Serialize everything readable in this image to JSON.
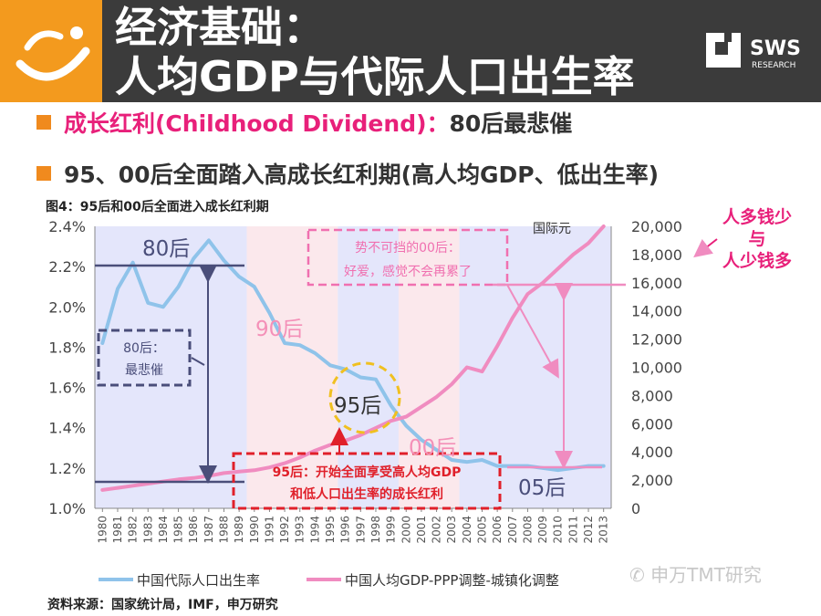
{
  "header": {
    "title_line1": "经济基础：",
    "title_line2": "人均GDP与代际人口出生率",
    "sws_brand": "SWS",
    "sws_sub": "RESEARCH"
  },
  "bullets": {
    "b1_pink": "成长红利(Childhood Dividend)：",
    "b1_rest": "80后最悲催",
    "b2": "95、00后全面踏入高成长红利期(高人均GDP、低出生率)"
  },
  "figure": {
    "title": "图4：95后和00后全面进入成长红利期",
    "right_axis_unit": "国际元",
    "source": "资料来源：国家统计局，IMF，申万研究"
  },
  "annotations": {
    "era_80": "80后",
    "era_90": "90后",
    "era_95": "95后",
    "era_00": "00后",
    "era_05": "05后",
    "note_80_line1": "80后：",
    "note_80_line2": "最悲催",
    "note_00_line1": "势不可挡的00后：",
    "note_00_line2": "好爱，感觉不会再累了",
    "note_95_line1": "95后：开始全面享受高人均GDP",
    "note_95_line2": "和低人口出生率的成长红利",
    "side_line1": "人多钱少",
    "side_line2": "与",
    "side_line3": "人少钱多"
  },
  "watermark": "申万TMT研究",
  "colors": {
    "header_bg": "#3b3b3b",
    "logo_bg": "#f39a1e",
    "birth_rate_line": "#8fc3ea",
    "gdp_line": "#f08cc0",
    "accent_pink": "#e8207a",
    "dashed_red": "#e0202a",
    "band_blue": "#e4e6fb",
    "band_pink": "#fbe8ec"
  },
  "chart_data": {
    "type": "line",
    "x": [
      "1980",
      "1981",
      "1982",
      "1983",
      "1984",
      "1985",
      "1986",
      "1987",
      "1988",
      "1989",
      "1990",
      "1991",
      "1992",
      "1993",
      "1994",
      "1995",
      "1996",
      "1997",
      "1998",
      "1999",
      "2000",
      "2001",
      "2002",
      "2003",
      "2004",
      "2005",
      "2006",
      "2007",
      "2008",
      "2009",
      "2010",
      "2011",
      "2012",
      "2013"
    ],
    "series": [
      {
        "name": "中国代际人口出生率",
        "axis": "left",
        "values": [
          1.82,
          2.09,
          2.22,
          2.02,
          2.0,
          2.1,
          2.24,
          2.33,
          2.23,
          2.15,
          2.1,
          1.97,
          1.82,
          1.81,
          1.77,
          1.71,
          1.69,
          1.65,
          1.64,
          1.51,
          1.41,
          1.34,
          1.29,
          1.24,
          1.23,
          1.24,
          1.21,
          1.21,
          1.21,
          1.2,
          1.19,
          1.2,
          1.21,
          1.21
        ]
      },
      {
        "name": "中国人均GDP-PPP调整-城镇化调整",
        "axis": "right",
        "values": [
          1300,
          1450,
          1600,
          1750,
          1900,
          2050,
          2150,
          2300,
          2500,
          2600,
          2700,
          2900,
          3200,
          3600,
          4100,
          4500,
          4800,
          5200,
          5700,
          6200,
          6500,
          7200,
          7900,
          8800,
          10000,
          9700,
          11500,
          13500,
          15200,
          16000,
          17000,
          18000,
          18800,
          20000
        ]
      }
    ],
    "ylim_left": [
      1.0,
      2.4
    ],
    "yticks_left": [
      "1.0%",
      "1.2%",
      "1.4%",
      "1.6%",
      "1.8%",
      "2.0%",
      "2.2%",
      "2.4%"
    ],
    "ylim_right": [
      0,
      20000
    ],
    "yticks_right": [
      "0",
      "2,000",
      "4,000",
      "6,000",
      "8,000",
      "10,000",
      "12,000",
      "14,000",
      "16,000",
      "18,000",
      "20,000"
    ],
    "legend_position": "bottom"
  }
}
